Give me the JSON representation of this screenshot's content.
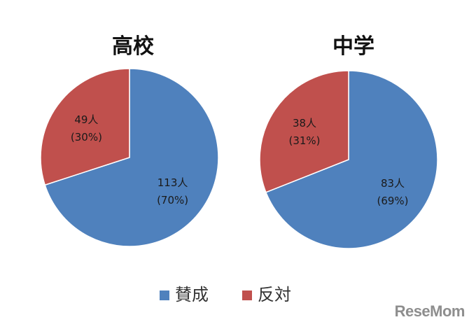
{
  "chart_data": [
    {
      "type": "pie",
      "title": "高校",
      "slices": [
        {
          "name": "賛成",
          "value": 113,
          "percent": 70,
          "label": "113人",
          "pct_label": "(70%)",
          "color": "#4f81bd"
        },
        {
          "name": "反対",
          "value": 49,
          "percent": 30,
          "label": "49人",
          "pct_label": "(30%)",
          "color": "#c0504d"
        }
      ]
    },
    {
      "type": "pie",
      "title": "中学",
      "slices": [
        {
          "name": "賛成",
          "value": 83,
          "percent": 69,
          "label": "83人",
          "pct_label": "(69%)",
          "color": "#4f81bd"
        },
        {
          "name": "反対",
          "value": 38,
          "percent": 31,
          "label": "38人",
          "pct_label": "(31%)",
          "color": "#c0504d"
        }
      ]
    }
  ],
  "legend": {
    "placement": "bottom",
    "items": [
      {
        "label": "賛成",
        "color": "#4f81bd"
      },
      {
        "label": "反対",
        "color": "#c0504d"
      }
    ]
  },
  "watermark": {
    "text_part1": "Rese",
    "text_part2": "Mom"
  }
}
